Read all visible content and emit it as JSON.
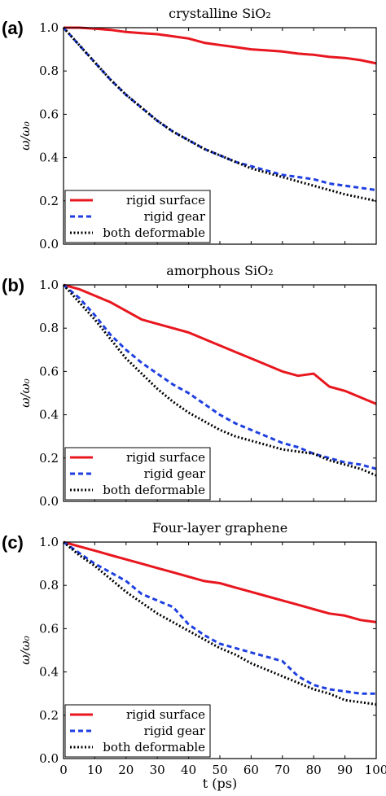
{
  "figure": {
    "xlabel": "t (ps)",
    "ylabel": "ω/ω₀"
  },
  "colors": {
    "rigid_surface": "#e8171f",
    "rigid_gear": "#1f3fe0",
    "both_deformable": "#000000"
  },
  "chart_data": [
    {
      "type": "line",
      "panel_label": "(a)",
      "title": "crystalline SiO₂",
      "xlim": [
        0,
        100
      ],
      "ylim": [
        0,
        1
      ],
      "yticks": [
        "0.0",
        "0.2",
        "0.4",
        "0.6",
        "0.8",
        "1.0"
      ],
      "legend_position": "bottom-left",
      "x": [
        0,
        5,
        10,
        15,
        20,
        25,
        30,
        35,
        40,
        45,
        50,
        55,
        60,
        65,
        70,
        75,
        80,
        85,
        90,
        95,
        100
      ],
      "series": [
        {
          "name": "rigid surface",
          "key": "rigid_surface",
          "style": "solid",
          "values": [
            1.0,
            1.0,
            0.995,
            0.99,
            0.98,
            0.975,
            0.97,
            0.96,
            0.95,
            0.93,
            0.92,
            0.91,
            0.9,
            0.895,
            0.89,
            0.88,
            0.875,
            0.865,
            0.86,
            0.85,
            0.835
          ]
        },
        {
          "name": "rigid gear",
          "key": "rigid_gear",
          "style": "dashed",
          "values": [
            1.0,
            0.92,
            0.84,
            0.76,
            0.69,
            0.63,
            0.57,
            0.52,
            0.48,
            0.44,
            0.41,
            0.38,
            0.36,
            0.34,
            0.32,
            0.31,
            0.3,
            0.28,
            0.27,
            0.26,
            0.25
          ]
        },
        {
          "name": "both deformable",
          "key": "both_deformable",
          "style": "dotted",
          "values": [
            1.0,
            0.92,
            0.84,
            0.76,
            0.69,
            0.63,
            0.57,
            0.52,
            0.48,
            0.44,
            0.41,
            0.38,
            0.35,
            0.33,
            0.31,
            0.29,
            0.27,
            0.25,
            0.23,
            0.215,
            0.2
          ]
        }
      ]
    },
    {
      "type": "line",
      "panel_label": "(b)",
      "title": "amorphous SiO₂",
      "xlim": [
        0,
        100
      ],
      "ylim": [
        0,
        1
      ],
      "yticks": [
        "0.0",
        "0.2",
        "0.4",
        "0.6",
        "0.8",
        "1.0"
      ],
      "legend_position": "bottom-left",
      "x": [
        0,
        5,
        10,
        15,
        20,
        25,
        30,
        35,
        40,
        45,
        50,
        55,
        60,
        65,
        70,
        75,
        80,
        85,
        90,
        95,
        100
      ],
      "series": [
        {
          "name": "rigid surface",
          "key": "rigid_surface",
          "style": "solid",
          "values": [
            1.0,
            0.98,
            0.95,
            0.92,
            0.88,
            0.84,
            0.82,
            0.8,
            0.78,
            0.75,
            0.72,
            0.69,
            0.66,
            0.63,
            0.6,
            0.58,
            0.59,
            0.53,
            0.51,
            0.48,
            0.45
          ]
        },
        {
          "name": "rigid gear",
          "key": "rigid_gear",
          "style": "dashed",
          "values": [
            1.0,
            0.94,
            0.86,
            0.77,
            0.7,
            0.64,
            0.59,
            0.54,
            0.5,
            0.45,
            0.4,
            0.36,
            0.33,
            0.3,
            0.27,
            0.25,
            0.22,
            0.2,
            0.18,
            0.17,
            0.15
          ]
        },
        {
          "name": "both deformable",
          "key": "both_deformable",
          "style": "dotted",
          "values": [
            1.0,
            0.92,
            0.84,
            0.75,
            0.66,
            0.59,
            0.52,
            0.46,
            0.41,
            0.37,
            0.33,
            0.3,
            0.28,
            0.26,
            0.24,
            0.23,
            0.22,
            0.19,
            0.17,
            0.15,
            0.12
          ]
        }
      ]
    },
    {
      "type": "line",
      "panel_label": "(c)",
      "title": "Four-layer graphene",
      "xlim": [
        0,
        100
      ],
      "ylim": [
        0,
        1
      ],
      "xticks": [
        "0",
        "10",
        "20",
        "30",
        "40",
        "50",
        "60",
        "70",
        "80",
        "90",
        "100"
      ],
      "yticks": [
        "0.0",
        "0.2",
        "0.4",
        "0.6",
        "0.8",
        "1.0"
      ],
      "legend_position": "bottom-left",
      "x": [
        0,
        5,
        10,
        15,
        20,
        25,
        30,
        35,
        40,
        45,
        50,
        55,
        60,
        65,
        70,
        75,
        80,
        85,
        90,
        95,
        100
      ],
      "series": [
        {
          "name": "rigid surface",
          "key": "rigid_surface",
          "style": "solid",
          "values": [
            1.0,
            0.98,
            0.96,
            0.94,
            0.92,
            0.9,
            0.88,
            0.86,
            0.84,
            0.82,
            0.81,
            0.79,
            0.77,
            0.75,
            0.73,
            0.71,
            0.69,
            0.67,
            0.66,
            0.64,
            0.63
          ]
        },
        {
          "name": "rigid gear",
          "key": "rigid_gear",
          "style": "dashed",
          "values": [
            1.0,
            0.95,
            0.9,
            0.86,
            0.82,
            0.76,
            0.73,
            0.7,
            0.62,
            0.57,
            0.53,
            0.51,
            0.49,
            0.47,
            0.45,
            0.38,
            0.34,
            0.32,
            0.31,
            0.3,
            0.3
          ]
        },
        {
          "name": "both deformable",
          "key": "both_deformable",
          "style": "dotted",
          "values": [
            1.0,
            0.94,
            0.89,
            0.83,
            0.77,
            0.72,
            0.67,
            0.63,
            0.59,
            0.55,
            0.51,
            0.48,
            0.44,
            0.41,
            0.38,
            0.35,
            0.32,
            0.3,
            0.27,
            0.26,
            0.25
          ]
        }
      ]
    }
  ]
}
